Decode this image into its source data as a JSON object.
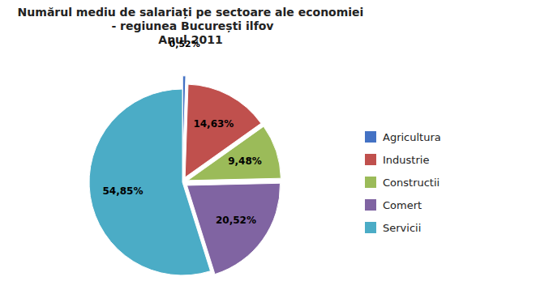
{
  "chart_data": {
    "type": "pie",
    "title": "Numărul mediu de salariați pe sectoare ale economiei\n - regiunea București ilfov\nAnul 2011",
    "categories": [
      "Agricultura",
      "Industrie",
      "Constructii",
      "Comert",
      "Servicii"
    ],
    "values": [
      0.52,
      14.63,
      9.48,
      20.52,
      54.85
    ],
    "value_labels": [
      "0,52%",
      "14,63%",
      "9,48%",
      "20,52%",
      "54,85%"
    ],
    "colors": [
      "#4472C4",
      "#C0504D",
      "#9BBB59",
      "#8064A2",
      "#4BACC6"
    ],
    "data_labels": true,
    "legend": "right"
  }
}
